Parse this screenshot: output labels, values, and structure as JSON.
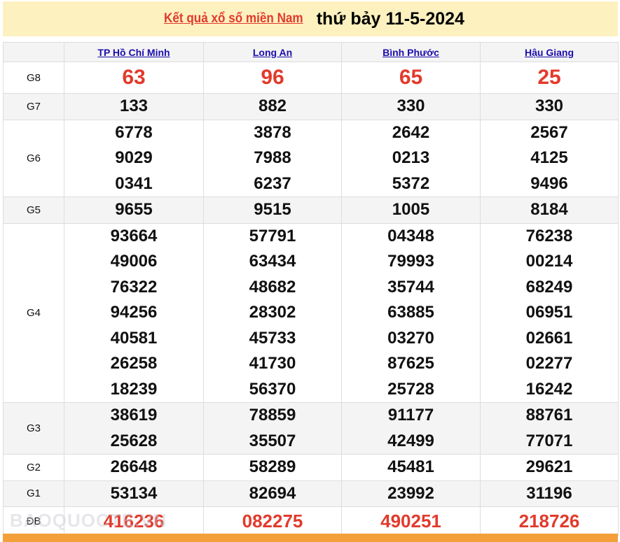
{
  "title": {
    "link": "Kết quả xổ số miền Nam",
    "date": "thứ bảy 11-5-2024"
  },
  "provinces": [
    "TP Hồ Chí Minh",
    "Long An",
    "Bình Phước",
    "Hậu Giang"
  ],
  "rows": [
    {
      "label": "G8",
      "values": [
        [
          "63"
        ],
        [
          "96"
        ],
        [
          "65"
        ],
        [
          "25"
        ]
      ]
    },
    {
      "label": "G7",
      "values": [
        [
          "133"
        ],
        [
          "882"
        ],
        [
          "330"
        ],
        [
          "330"
        ]
      ]
    },
    {
      "label": "G6",
      "values": [
        [
          "6778",
          "9029",
          "0341"
        ],
        [
          "3878",
          "7988",
          "6237"
        ],
        [
          "2642",
          "0213",
          "5372"
        ],
        [
          "2567",
          "4125",
          "9496"
        ]
      ]
    },
    {
      "label": "G5",
      "values": [
        [
          "9655"
        ],
        [
          "9515"
        ],
        [
          "1005"
        ],
        [
          "8184"
        ]
      ]
    },
    {
      "label": "G4",
      "values": [
        [
          "93664",
          "49006",
          "76322",
          "94256",
          "40581",
          "26258",
          "18239"
        ],
        [
          "57791",
          "63434",
          "48682",
          "28302",
          "45733",
          "41730",
          "56370"
        ],
        [
          "04348",
          "79993",
          "35744",
          "63885",
          "03270",
          "87625",
          "25728"
        ],
        [
          "76238",
          "00214",
          "68249",
          "06951",
          "02661",
          "02277",
          "16242"
        ]
      ]
    },
    {
      "label": "G3",
      "values": [
        [
          "38619",
          "25628"
        ],
        [
          "78859",
          "35507"
        ],
        [
          "91177",
          "42499"
        ],
        [
          "88761",
          "77071"
        ]
      ]
    },
    {
      "label": "G2",
      "values": [
        [
          "26648"
        ],
        [
          "58289"
        ],
        [
          "45481"
        ],
        [
          "29621"
        ]
      ]
    },
    {
      "label": "G1",
      "values": [
        [
          "53134"
        ],
        [
          "82694"
        ],
        [
          "23992"
        ],
        [
          "31196"
        ]
      ]
    },
    {
      "label": "ĐB",
      "values": [
        [
          "416236"
        ],
        [
          "082275"
        ],
        [
          "490251"
        ],
        [
          "218726"
        ]
      ]
    }
  ],
  "watermark": "BAOQUOCTE.VN",
  "colors": {
    "accent": "#e23a2c",
    "link": "#1a0dab",
    "title_bg": "#fdf1c0",
    "footer_bar": "#f3a03b"
  }
}
